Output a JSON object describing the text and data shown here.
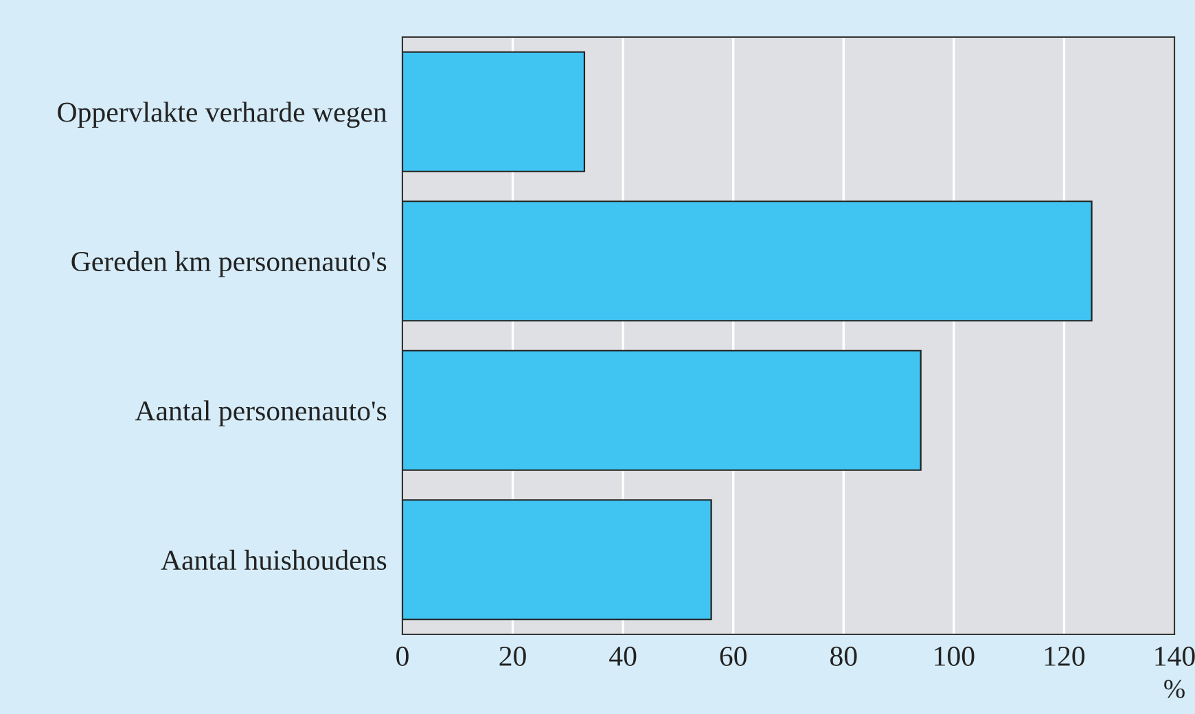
{
  "chart_data": {
    "type": "bar",
    "orientation": "horizontal",
    "categories": [
      "Oppervlakte verharde wegen",
      "Gereden km personenauto's",
      "Aantal personenauto's",
      "Aantal huishoudens"
    ],
    "values": [
      33,
      125,
      94,
      56
    ],
    "color": "#40c4f2",
    "xlim": [
      0,
      140
    ],
    "xticks": [
      0,
      20,
      40,
      60,
      80,
      100,
      120,
      140
    ],
    "xlabel": "%",
    "grid": "x"
  }
}
